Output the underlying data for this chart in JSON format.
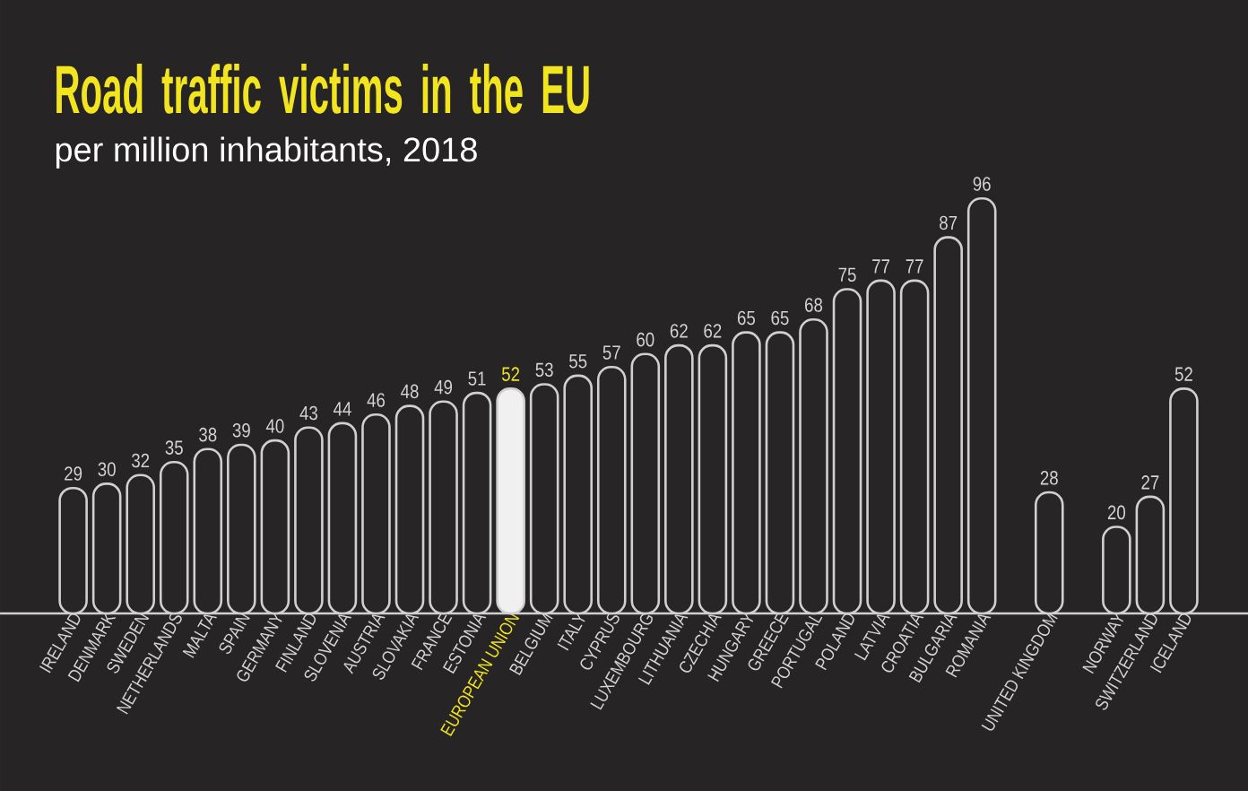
{
  "chart_data": {
    "type": "bar",
    "title": "Road traffic victims in the EU",
    "subtitle": "per million inhabitants, 2018",
    "categories": [
      "IRELAND",
      "DENMARK",
      "SWEDEN",
      "NETHERLANDS",
      "MALTA",
      "SPAIN",
      "GERMANY",
      "FINLAND",
      "SLOVENIA",
      "AUSTRIA",
      "SLOVAKIA",
      "FRANCE",
      "ESTONIA",
      "EUROPEAN UNION",
      "BELGIUM",
      "ITALY",
      "CYPRUS",
      "LUXEMBOURG",
      "LITHUANIA",
      "CZECHIA",
      "HUNGARY",
      "GREECE",
      "PORTUGAL",
      "POLAND",
      "LATVIA",
      "CROATIA",
      "BULGARIA",
      "ROMANIA",
      null,
      "UNITED KINGDOM",
      null,
      "NORWAY",
      "SWITZERLAND",
      "ICELAND"
    ],
    "values": [
      29,
      30,
      32,
      35,
      38,
      39,
      40,
      43,
      44,
      46,
      48,
      49,
      51,
      52,
      53,
      55,
      57,
      60,
      62,
      62,
      65,
      65,
      68,
      75,
      77,
      77,
      87,
      96,
      null,
      28,
      null,
      20,
      27,
      52
    ],
    "colors": [
      "#272525",
      "#272525",
      "#272525",
      "#272525",
      "#272525",
      "#272525",
      "#272525",
      "#272525",
      "#272525",
      "#272525",
      "#272525",
      "#272525",
      "#272525",
      "#f0f0f0",
      "#272525",
      "#272525",
      "#272525",
      "#272525",
      "#272525",
      "#272525",
      "#272525",
      "#272525",
      "#272525",
      "#272525",
      "#272525",
      "#272525",
      "#272525",
      "#272525",
      null,
      "#272525",
      null,
      "#272525",
      "#272525",
      "#272525"
    ],
    "data_labels": true
  }
}
